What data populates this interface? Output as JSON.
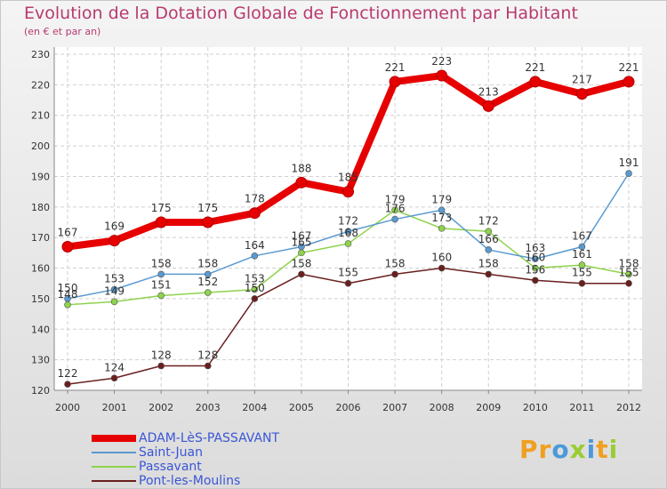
{
  "brand": {
    "text": "Proxiti",
    "colors": [
      "#f0a020",
      "#f0a020",
      "#4a9ad8",
      "#9acd32",
      "#4a9ad8",
      "#f0a020",
      "#9acd32"
    ]
  },
  "chart_data": {
    "type": "line",
    "title": "Evolution de la Dotation Globale de Fonctionnement par Habitant",
    "subtitle": "(en € et par an)",
    "xlabel": "",
    "ylabel": "",
    "ylim": [
      120,
      230
    ],
    "yticks": [
      120,
      130,
      140,
      150,
      160,
      170,
      180,
      190,
      200,
      210,
      220,
      230
    ],
    "grid": true,
    "legend_position": "bottom-left",
    "x": [
      "2000",
      "2001",
      "2002",
      "2003",
      "2004",
      "2005",
      "2006",
      "2007",
      "2008",
      "2009",
      "2010",
      "2011",
      "2012"
    ],
    "series": [
      {
        "name": "ADAM-LèS-PASSAVANT",
        "color": "#e60000",
        "values": [
          167,
          169,
          175,
          175,
          178,
          188,
          185,
          221,
          223,
          213,
          221,
          217,
          221
        ]
      },
      {
        "name": "Saint-Juan",
        "color": "#5a9ad0",
        "values": [
          150,
          153,
          158,
          158,
          164,
          167,
          172,
          176,
          179,
          166,
          163,
          167,
          191
        ]
      },
      {
        "name": "Passavant",
        "color": "#8ed34c",
        "values": [
          148,
          149,
          151,
          152,
          153,
          165,
          168,
          179,
          173,
          172,
          160,
          161,
          158
        ]
      },
      {
        "name": "Pont-les-Moulins",
        "color": "#6a1f1f",
        "values": [
          122,
          124,
          128,
          128,
          150,
          158,
          155,
          158,
          160,
          158,
          156,
          155,
          155
        ]
      }
    ],
    "data_labels": [
      [
        "167",
        "169",
        "175",
        "175",
        "178",
        "188",
        "185",
        "221",
        "223",
        "213",
        "221",
        "217",
        "221"
      ],
      [
        "150",
        "153",
        "158",
        "158",
        "164",
        "167",
        "172",
        "176",
        "179",
        "166",
        "163",
        "167",
        "191"
      ],
      [
        "148",
        "149",
        "151",
        "152",
        "153",
        "165",
        "168",
        "179",
        "173",
        "172",
        "160",
        "161",
        "158"
      ],
      [
        "122",
        "124",
        "128",
        "128",
        "150",
        "158",
        "155",
        "158",
        "160",
        "158",
        "156",
        "155",
        "155"
      ]
    ]
  }
}
